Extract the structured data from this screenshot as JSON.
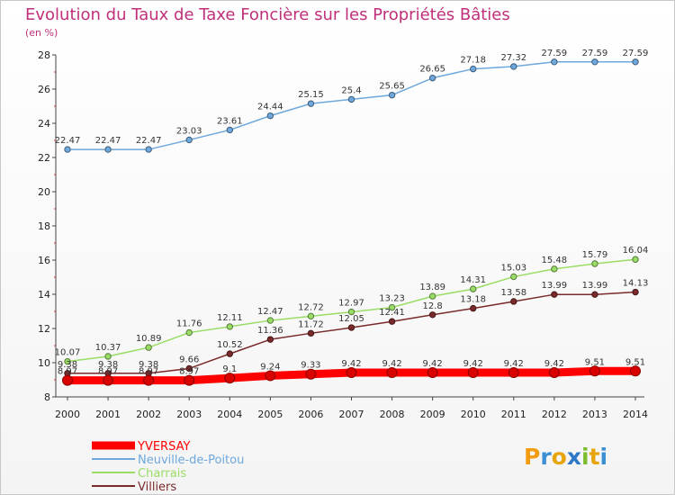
{
  "chart_data": {
    "type": "line",
    "title": "Evolution du Taux de Taxe Foncière sur les Propriétés Bâties",
    "subtitle": "(en %)",
    "x": [
      "2000",
      "2001",
      "2002",
      "2003",
      "2004",
      "2005",
      "2006",
      "2007",
      "2008",
      "2009",
      "2010",
      "2011",
      "2012",
      "2013",
      "2014"
    ],
    "ylim": [
      8,
      28
    ],
    "yticks": [
      8,
      10,
      12,
      14,
      16,
      18,
      20,
      22,
      24,
      26,
      28
    ],
    "grid": false,
    "legend_position": "bottom-left",
    "series": [
      {
        "name": "YVERSAY",
        "color": "#ff0000",
        "values": [
          8.97,
          8.97,
          8.97,
          8.97,
          9.1,
          9.24,
          9.33,
          9.42,
          9.42,
          9.42,
          9.42,
          9.42,
          9.42,
          9.51,
          9.51
        ],
        "labels": [
          "8.97",
          "8.97",
          "8.97",
          "8.97",
          "9.1",
          "9.24",
          "9.33",
          "9.42",
          "9.42",
          "9.42",
          "9.42",
          "9.42",
          "9.42",
          "9.51",
          "9.51"
        ]
      },
      {
        "name": "Neuville-de-Poitou",
        "color": "#6fa8dc",
        "values": [
          22.47,
          22.47,
          22.47,
          23.03,
          23.61,
          24.44,
          25.15,
          25.4,
          25.65,
          26.65,
          27.18,
          27.32,
          27.59,
          27.59,
          27.59
        ],
        "labels": [
          "22.47",
          "22.47",
          "22.47",
          "23.03",
          "23.61",
          "24.44",
          "25.15",
          "25.4",
          "25.65",
          "26.65",
          "27.18",
          "27.32",
          "27.59",
          "27.59",
          "27.59"
        ]
      },
      {
        "name": "Charrais",
        "color": "#99dd66",
        "values": [
          10.07,
          10.37,
          10.89,
          11.76,
          12.11,
          12.47,
          12.72,
          12.97,
          13.23,
          13.89,
          14.31,
          15.03,
          15.48,
          15.79,
          16.04
        ],
        "labels": [
          "10.07",
          "10.37",
          "10.89",
          "11.76",
          "12.11",
          "12.47",
          "12.72",
          "12.97",
          "13.23",
          "13.89",
          "14.31",
          "15.03",
          "15.48",
          "15.79",
          "16.04"
        ]
      },
      {
        "name": "Villiers",
        "color": "#7a2a2a",
        "values": [
          9.38,
          9.38,
          9.38,
          9.66,
          10.52,
          11.36,
          11.72,
          12.05,
          12.41,
          12.8,
          13.18,
          13.58,
          13.99,
          13.99,
          14.13
        ],
        "labels": [
          "9.38",
          "9.38",
          "9.38",
          "9.66",
          "10.52",
          "11.36",
          "11.72",
          "12.05",
          "12.41",
          "12.8",
          "13.18",
          "13.58",
          "13.99",
          "13.99",
          "14.13"
        ]
      }
    ]
  },
  "logo": {
    "text": "Proxiti"
  }
}
